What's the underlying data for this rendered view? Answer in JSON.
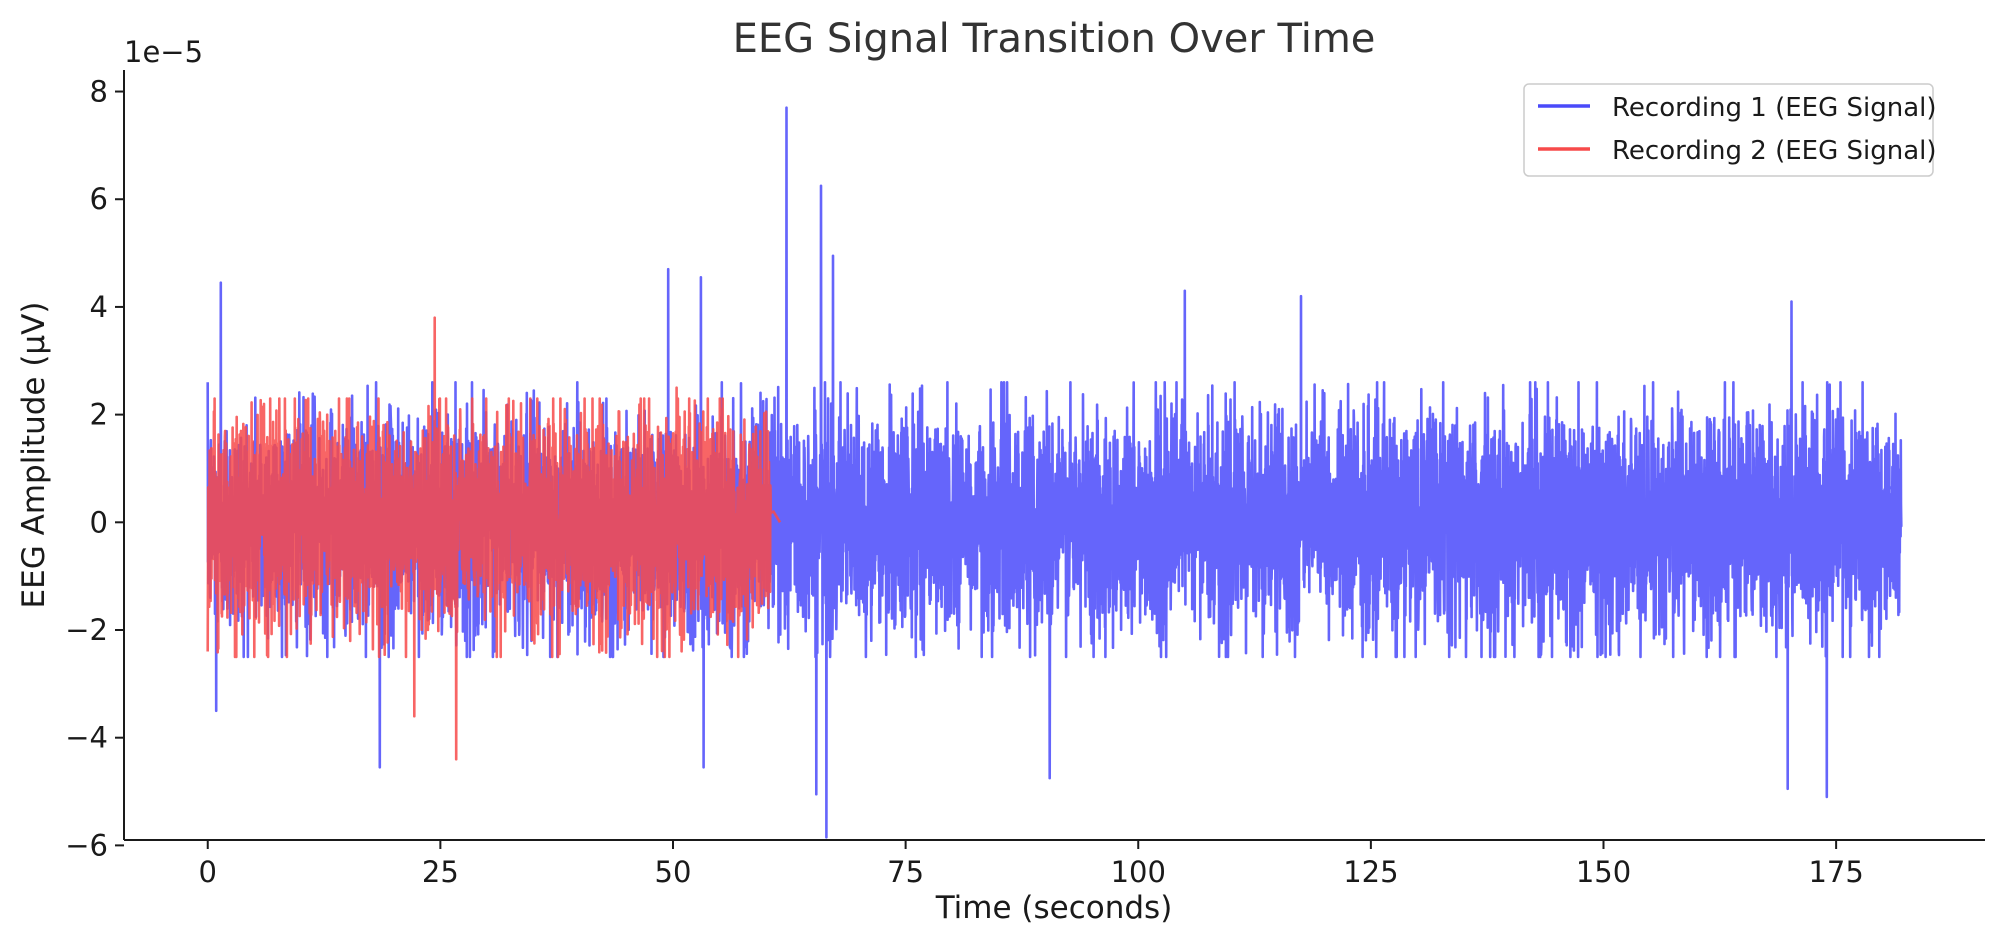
{
  "chart_data": {
    "type": "line",
    "title": "EEG Signal Transition Over Time",
    "xlabel": "Time (seconds)",
    "ylabel": "EEG Amplitude (µV)",
    "y_offset_label": "1e−5",
    "xlim": [
      -9,
      191
    ],
    "ylim": [
      -5.9,
      8.4
    ],
    "y_unit_scale": "1e-5",
    "x_ticks": [
      0,
      25,
      50,
      75,
      100,
      125,
      150,
      175
    ],
    "x_tick_labels": [
      "0",
      "25",
      "50",
      "75",
      "100",
      "125",
      "150",
      "175"
    ],
    "y_ticks": [
      -6,
      -4,
      -2,
      0,
      2,
      4,
      6,
      8
    ],
    "y_tick_labels": [
      "−6",
      "−4",
      "−2",
      "0",
      "2",
      "4",
      "6",
      "8"
    ],
    "grid": false,
    "legend_position": "top-right",
    "series": [
      {
        "name": "Recording 1 (EEG Signal)",
        "color": "#4a4afa",
        "x_range": [
          0,
          182
        ],
        "noise_sigma": 1.0,
        "clip_range": [
          -2.5,
          2.6
        ],
        "peaks": [
          {
            "x": 1.4,
            "y": 4.45
          },
          {
            "x": 0.9,
            "y": -3.5
          },
          {
            "x": 18.5,
            "y": -4.55
          },
          {
            "x": 49.5,
            "y": 4.7
          },
          {
            "x": 53,
            "y": 4.55
          },
          {
            "x": 53.3,
            "y": -4.55
          },
          {
            "x": 62.2,
            "y": 7.7
          },
          {
            "x": 65.9,
            "y": 6.25
          },
          {
            "x": 65.4,
            "y": -5.05
          },
          {
            "x": 66.5,
            "y": -5.85
          },
          {
            "x": 67.2,
            "y": 4.95
          },
          {
            "x": 90.5,
            "y": -4.75
          },
          {
            "x": 105,
            "y": 4.3
          },
          {
            "x": 117.5,
            "y": 4.2
          },
          {
            "x": 170.2,
            "y": 4.1
          },
          {
            "x": 169.8,
            "y": -4.95
          },
          {
            "x": 174,
            "y": -5.1
          }
        ],
        "end_points": [
          {
            "x": 180.4,
            "y": 0.7
          },
          {
            "x": 181.2,
            "y": 0.6
          },
          {
            "x": 181.4,
            "y": -0.4
          },
          {
            "x": 182,
            "y": 0.0
          }
        ]
      },
      {
        "name": "Recording 2 (EEG Signal)",
        "color": "#f74a4a",
        "x_range": [
          0,
          60.5
        ],
        "noise_sigma": 1.0,
        "clip_range": [
          -2.5,
          2.3
        ],
        "peaks": [
          {
            "x": 0,
            "y": -2.4
          },
          {
            "x": 24.4,
            "y": 3.8
          },
          {
            "x": 26.7,
            "y": -4.4
          },
          {
            "x": 22.2,
            "y": -3.6
          },
          {
            "x": 50.4,
            "y": 2.5
          }
        ],
        "end_points": [
          {
            "x": 60.8,
            "y": 0.2
          },
          {
            "x": 61.5,
            "y": 0.0
          }
        ]
      }
    ]
  }
}
